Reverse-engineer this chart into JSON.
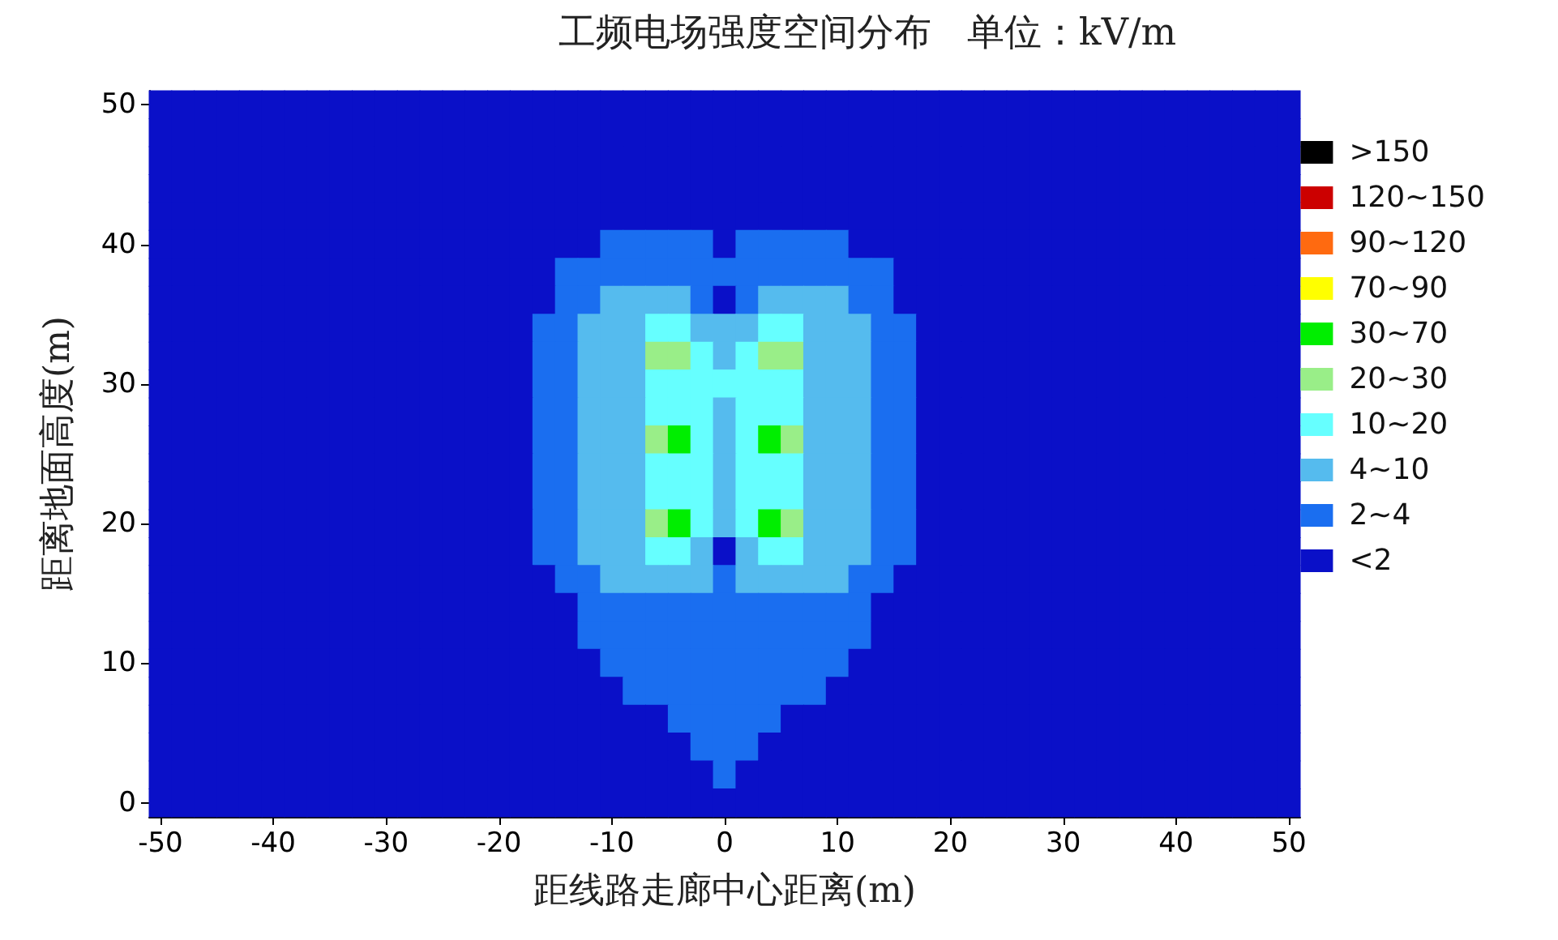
{
  "chart_data": {
    "type": "heatmap",
    "title": "工频电场强度空间分布   单位：kV/m",
    "xlabel": "距线路走廊中心距离(m)",
    "ylabel": "距离地面高度(m)",
    "categories": [
      "-50",
      null,
      null,
      null,
      null,
      "-40",
      null,
      null,
      null,
      null,
      "-30",
      null,
      null,
      null,
      null,
      "-20",
      null,
      null,
      null,
      null,
      "-10",
      null,
      null,
      null,
      null,
      "0",
      null,
      null,
      null,
      null,
      "10",
      null,
      null,
      null,
      null,
      "20",
      null,
      null,
      null,
      null,
      "30",
      null,
      null,
      null,
      null,
      "40",
      null,
      null,
      null,
      null,
      "50"
    ],
    "y_categories": [
      "50",
      null,
      null,
      null,
      null,
      "40",
      null,
      null,
      null,
      null,
      "30",
      null,
      null,
      null,
      null,
      "20",
      null,
      null,
      null,
      null,
      "10",
      null,
      null,
      null,
      null,
      "0"
    ],
    "cticks": [
      {
        "value": 9,
        "label": ">150"
      },
      {
        "value": 8,
        "label": "120~150"
      },
      {
        "value": 7,
        "label": "90~120"
      },
      {
        "value": 6,
        "label": "70~90"
      },
      {
        "value": 5,
        "label": "30~70"
      },
      {
        "value": 4,
        "label": "20~30"
      },
      {
        "value": 3,
        "label": "10~20"
      },
      {
        "value": 2,
        "label": "4~10"
      },
      {
        "value": 1,
        "label": "2~4"
      },
      {
        "value": 0,
        "label": "<2"
      }
    ],
    "colors": [
      "#000000",
      "#cc0000",
      "#ff6a10",
      "#ffff00",
      "#00ee00",
      "#99ee88",
      "#66ffff",
      "#55bbee",
      "#1a6ef0",
      "#0a10c8"
    ],
    "cells": [
      [
        0,
        0,
        0,
        0,
        0,
        0,
        0,
        0,
        0,
        0,
        0,
        0,
        0,
        0,
        0,
        0,
        0,
        0,
        0,
        0,
        0,
        0,
        0,
        0,
        0,
        0,
        0,
        0,
        0,
        0,
        0,
        0,
        0,
        0,
        0,
        0,
        0,
        0,
        0,
        0,
        0,
        0,
        0,
        0,
        0,
        0,
        0,
        0,
        0,
        0,
        0
      ],
      [
        0,
        0,
        0,
        0,
        0,
        0,
        0,
        0,
        0,
        0,
        0,
        0,
        0,
        0,
        0,
        0,
        0,
        0,
        0,
        0,
        0,
        0,
        0,
        0,
        0,
        0,
        0,
        0,
        0,
        0,
        0,
        0,
        0,
        0,
        0,
        0,
        0,
        0,
        0,
        0,
        0,
        0,
        0,
        0,
        0,
        0,
        0,
        0,
        0,
        0,
        0
      ],
      [
        0,
        0,
        0,
        0,
        0,
        0,
        0,
        0,
        0,
        0,
        0,
        0,
        0,
        0,
        0,
        0,
        0,
        0,
        0,
        0,
        0,
        0,
        0,
        0,
        0,
        0,
        0,
        0,
        0,
        0,
        0,
        0,
        0,
        0,
        0,
        0,
        0,
        0,
        0,
        0,
        0,
        0,
        0,
        0,
        0,
        0,
        0,
        0,
        0,
        0,
        0
      ],
      [
        0,
        0,
        0,
        0,
        0,
        0,
        0,
        0,
        0,
        0,
        0,
        0,
        0,
        0,
        0,
        0,
        0,
        0,
        0,
        0,
        0,
        0,
        0,
        0,
        0,
        0,
        0,
        0,
        0,
        0,
        0,
        0,
        0,
        0,
        0,
        0,
        0,
        0,
        0,
        0,
        0,
        0,
        0,
        0,
        0,
        0,
        0,
        0,
        0,
        0,
        0
      ],
      [
        0,
        0,
        0,
        0,
        0,
        0,
        0,
        0,
        0,
        0,
        0,
        0,
        0,
        0,
        0,
        0,
        0,
        0,
        0,
        0,
        0,
        0,
        0,
        0,
        0,
        0,
        0,
        0,
        0,
        0,
        0,
        0,
        0,
        0,
        0,
        0,
        0,
        0,
        0,
        0,
        0,
        0,
        0,
        0,
        0,
        0,
        0,
        0,
        0,
        0,
        0
      ],
      [
        0,
        0,
        0,
        0,
        0,
        0,
        0,
        0,
        0,
        0,
        0,
        0,
        0,
        0,
        0,
        0,
        0,
        0,
        0,
        0,
        1,
        1,
        1,
        1,
        1,
        0,
        1,
        1,
        1,
        1,
        1,
        0,
        0,
        0,
        0,
        0,
        0,
        0,
        0,
        0,
        0,
        0,
        0,
        0,
        0,
        0,
        0,
        0,
        0,
        0,
        0
      ],
      [
        0,
        0,
        0,
        0,
        0,
        0,
        0,
        0,
        0,
        0,
        0,
        0,
        0,
        0,
        0,
        0,
        0,
        0,
        1,
        1,
        1,
        1,
        1,
        1,
        1,
        1,
        1,
        1,
        1,
        1,
        1,
        1,
        1,
        0,
        0,
        0,
        0,
        0,
        0,
        0,
        0,
        0,
        0,
        0,
        0,
        0,
        0,
        0,
        0,
        0,
        0
      ],
      [
        0,
        0,
        0,
        0,
        0,
        0,
        0,
        0,
        0,
        0,
        0,
        0,
        0,
        0,
        0,
        0,
        0,
        0,
        1,
        1,
        2,
        2,
        2,
        2,
        1,
        0,
        1,
        2,
        2,
        2,
        2,
        1,
        1,
        0,
        0,
        0,
        0,
        0,
        0,
        0,
        0,
        0,
        0,
        0,
        0,
        0,
        0,
        0,
        0,
        0,
        0
      ],
      [
        0,
        0,
        0,
        0,
        0,
        0,
        0,
        0,
        0,
        0,
        0,
        0,
        0,
        0,
        0,
        0,
        0,
        1,
        1,
        2,
        2,
        2,
        3,
        3,
        2,
        2,
        2,
        3,
        3,
        2,
        2,
        2,
        1,
        1,
        0,
        0,
        0,
        0,
        0,
        0,
        0,
        0,
        0,
        0,
        0,
        0,
        0,
        0,
        0,
        0,
        0
      ],
      [
        0,
        0,
        0,
        0,
        0,
        0,
        0,
        0,
        0,
        0,
        0,
        0,
        0,
        0,
        0,
        0,
        0,
        1,
        1,
        2,
        2,
        2,
        4,
        4,
        3,
        2,
        3,
        4,
        4,
        2,
        2,
        2,
        1,
        1,
        0,
        0,
        0,
        0,
        0,
        0,
        0,
        0,
        0,
        0,
        0,
        0,
        0,
        0,
        0,
        0,
        0
      ],
      [
        0,
        0,
        0,
        0,
        0,
        0,
        0,
        0,
        0,
        0,
        0,
        0,
        0,
        0,
        0,
        0,
        0,
        1,
        1,
        2,
        2,
        2,
        3,
        3,
        3,
        3,
        3,
        3,
        3,
        2,
        2,
        2,
        1,
        1,
        0,
        0,
        0,
        0,
        0,
        0,
        0,
        0,
        0,
        0,
        0,
        0,
        0,
        0,
        0,
        0,
        0
      ],
      [
        0,
        0,
        0,
        0,
        0,
        0,
        0,
        0,
        0,
        0,
        0,
        0,
        0,
        0,
        0,
        0,
        0,
        1,
        1,
        2,
        2,
        2,
        3,
        3,
        3,
        2,
        3,
        3,
        3,
        2,
        2,
        2,
        1,
        1,
        0,
        0,
        0,
        0,
        0,
        0,
        0,
        0,
        0,
        0,
        0,
        0,
        0,
        0,
        0,
        0,
        0
      ],
      [
        0,
        0,
        0,
        0,
        0,
        0,
        0,
        0,
        0,
        0,
        0,
        0,
        0,
        0,
        0,
        0,
        0,
        1,
        1,
        2,
        2,
        2,
        4,
        5,
        3,
        2,
        3,
        5,
        4,
        2,
        2,
        2,
        1,
        1,
        0,
        0,
        0,
        0,
        0,
        0,
        0,
        0,
        0,
        0,
        0,
        0,
        0,
        0,
        0,
        0,
        0
      ],
      [
        0,
        0,
        0,
        0,
        0,
        0,
        0,
        0,
        0,
        0,
        0,
        0,
        0,
        0,
        0,
        0,
        0,
        1,
        1,
        2,
        2,
        2,
        3,
        3,
        3,
        2,
        3,
        3,
        3,
        2,
        2,
        2,
        1,
        1,
        0,
        0,
        0,
        0,
        0,
        0,
        0,
        0,
        0,
        0,
        0,
        0,
        0,
        0,
        0,
        0,
        0
      ],
      [
        0,
        0,
        0,
        0,
        0,
        0,
        0,
        0,
        0,
        0,
        0,
        0,
        0,
        0,
        0,
        0,
        0,
        1,
        1,
        2,
        2,
        2,
        3,
        3,
        3,
        2,
        3,
        3,
        3,
        2,
        2,
        2,
        1,
        1,
        0,
        0,
        0,
        0,
        0,
        0,
        0,
        0,
        0,
        0,
        0,
        0,
        0,
        0,
        0,
        0,
        0
      ],
      [
        0,
        0,
        0,
        0,
        0,
        0,
        0,
        0,
        0,
        0,
        0,
        0,
        0,
        0,
        0,
        0,
        0,
        1,
        1,
        2,
        2,
        2,
        4,
        5,
        3,
        2,
        3,
        5,
        4,
        2,
        2,
        2,
        1,
        1,
        0,
        0,
        0,
        0,
        0,
        0,
        0,
        0,
        0,
        0,
        0,
        0,
        0,
        0,
        0,
        0,
        0
      ],
      [
        0,
        0,
        0,
        0,
        0,
        0,
        0,
        0,
        0,
        0,
        0,
        0,
        0,
        0,
        0,
        0,
        0,
        1,
        1,
        2,
        2,
        2,
        3,
        3,
        2,
        0,
        2,
        3,
        3,
        2,
        2,
        2,
        1,
        1,
        0,
        0,
        0,
        0,
        0,
        0,
        0,
        0,
        0,
        0,
        0,
        0,
        0,
        0,
        0,
        0,
        0
      ],
      [
        0,
        0,
        0,
        0,
        0,
        0,
        0,
        0,
        0,
        0,
        0,
        0,
        0,
        0,
        0,
        0,
        0,
        0,
        1,
        1,
        2,
        2,
        2,
        2,
        2,
        1,
        2,
        2,
        2,
        2,
        2,
        1,
        1,
        0,
        0,
        0,
        0,
        0,
        0,
        0,
        0,
        0,
        0,
        0,
        0,
        0,
        0,
        0,
        0,
        0,
        0
      ],
      [
        0,
        0,
        0,
        0,
        0,
        0,
        0,
        0,
        0,
        0,
        0,
        0,
        0,
        0,
        0,
        0,
        0,
        0,
        0,
        1,
        1,
        1,
        1,
        1,
        1,
        1,
        1,
        1,
        1,
        1,
        1,
        1,
        0,
        0,
        0,
        0,
        0,
        0,
        0,
        0,
        0,
        0,
        0,
        0,
        0,
        0,
        0,
        0,
        0,
        0,
        0
      ],
      [
        0,
        0,
        0,
        0,
        0,
        0,
        0,
        0,
        0,
        0,
        0,
        0,
        0,
        0,
        0,
        0,
        0,
        0,
        0,
        1,
        1,
        1,
        1,
        1,
        1,
        1,
        1,
        1,
        1,
        1,
        1,
        1,
        0,
        0,
        0,
        0,
        0,
        0,
        0,
        0,
        0,
        0,
        0,
        0,
        0,
        0,
        0,
        0,
        0,
        0,
        0
      ],
      [
        0,
        0,
        0,
        0,
        0,
        0,
        0,
        0,
        0,
        0,
        0,
        0,
        0,
        0,
        0,
        0,
        0,
        0,
        0,
        0,
        1,
        1,
        1,
        1,
        1,
        1,
        1,
        1,
        1,
        1,
        1,
        0,
        0,
        0,
        0,
        0,
        0,
        0,
        0,
        0,
        0,
        0,
        0,
        0,
        0,
        0,
        0,
        0,
        0,
        0,
        0
      ],
      [
        0,
        0,
        0,
        0,
        0,
        0,
        0,
        0,
        0,
        0,
        0,
        0,
        0,
        0,
        0,
        0,
        0,
        0,
        0,
        0,
        0,
        1,
        1,
        1,
        1,
        1,
        1,
        1,
        1,
        1,
        0,
        0,
        0,
        0,
        0,
        0,
        0,
        0,
        0,
        0,
        0,
        0,
        0,
        0,
        0,
        0,
        0,
        0,
        0,
        0,
        0
      ],
      [
        0,
        0,
        0,
        0,
        0,
        0,
        0,
        0,
        0,
        0,
        0,
        0,
        0,
        0,
        0,
        0,
        0,
        0,
        0,
        0,
        0,
        0,
        0,
        1,
        1,
        1,
        1,
        1,
        0,
        0,
        0,
        0,
        0,
        0,
        0,
        0,
        0,
        0,
        0,
        0,
        0,
        0,
        0,
        0,
        0,
        0,
        0,
        0,
        0,
        0,
        0
      ],
      [
        0,
        0,
        0,
        0,
        0,
        0,
        0,
        0,
        0,
        0,
        0,
        0,
        0,
        0,
        0,
        0,
        0,
        0,
        0,
        0,
        0,
        0,
        0,
        0,
        1,
        1,
        1,
        0,
        0,
        0,
        0,
        0,
        0,
        0,
        0,
        0,
        0,
        0,
        0,
        0,
        0,
        0,
        0,
        0,
        0,
        0,
        0,
        0,
        0,
        0,
        0
      ],
      [
        0,
        0,
        0,
        0,
        0,
        0,
        0,
        0,
        0,
        0,
        0,
        0,
        0,
        0,
        0,
        0,
        0,
        0,
        0,
        0,
        0,
        0,
        0,
        0,
        0,
        1,
        0,
        0,
        0,
        0,
        0,
        0,
        0,
        0,
        0,
        0,
        0,
        0,
        0,
        0,
        0,
        0,
        0,
        0,
        0,
        0,
        0,
        0,
        0,
        0,
        0
      ],
      [
        0,
        0,
        0,
        0,
        0,
        0,
        0,
        0,
        0,
        0,
        0,
        0,
        0,
        0,
        0,
        0,
        0,
        0,
        0,
        0,
        0,
        0,
        0,
        0,
        0,
        0,
        0,
        0,
        0,
        0,
        0,
        0,
        0,
        0,
        0,
        0,
        0,
        0,
        0,
        0,
        0,
        0,
        0,
        0,
        0,
        0,
        0,
        0,
        0,
        0,
        0
      ]
    ]
  }
}
